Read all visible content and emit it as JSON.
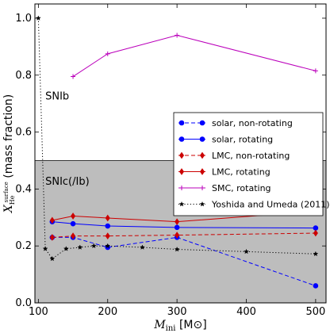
{
  "chart_data": {
    "type": "line",
    "xlabel": "M_ini [M⊙]",
    "xlabel_main": "M",
    "xlabel_sub": "ini",
    "xlabel_unit": "[M⊙]",
    "ylabel": "X_He^surface (mass fraction)",
    "ylabel_main": "X",
    "ylabel_sub": "He",
    "ylabel_sup": "surface",
    "ylabel_text": "(mass fraction)",
    "xlim": [
      95,
      515
    ],
    "ylim": [
      0.0,
      1.05
    ],
    "x_ticks": [
      100,
      200,
      300,
      400,
      500
    ],
    "y_ticks": [
      0.0,
      0.2,
      0.4,
      0.6,
      0.8,
      1.0
    ],
    "x_tick_labels": [
      "100",
      "200",
      "300",
      "400",
      "500"
    ],
    "y_tick_labels": [
      "0.0",
      "0.2",
      "0.4",
      "0.6",
      "0.8",
      "1.0"
    ],
    "regions": [
      {
        "label": "SNIb",
        "y_range": [
          0.5,
          1.05
        ],
        "fill": "#ffffff",
        "label_at": [
          110,
          0.715
        ]
      },
      {
        "label": "SNIc(/Ib)",
        "y_range": [
          0.0,
          0.5
        ],
        "fill": "#bdbdbd",
        "label_at": [
          110,
          0.415
        ]
      }
    ],
    "legend_position": "center-right",
    "series": [
      {
        "name": "solar, non-rotating",
        "color": "#0000ff",
        "line": "dashed",
        "marker": "circle",
        "x": [
          120,
          150,
          200,
          300,
          500
        ],
        "y": [
          0.23,
          0.23,
          0.195,
          0.23,
          0.06
        ]
      },
      {
        "name": "solar, rotating",
        "color": "#0000ff",
        "line": "solid",
        "marker": "circle",
        "x": [
          120,
          150,
          200,
          300,
          500
        ],
        "y": [
          0.285,
          0.278,
          0.27,
          0.265,
          0.263
        ]
      },
      {
        "name": "LMC, non-rotating",
        "color": "#cc0000",
        "line": "dashed",
        "marker": "diamond",
        "x": [
          120,
          150,
          200,
          300,
          500
        ],
        "y": [
          0.23,
          0.235,
          0.235,
          0.238,
          0.245
        ]
      },
      {
        "name": "LMC, rotating",
        "color": "#cc0000",
        "line": "solid",
        "marker": "diamond",
        "x": [
          120,
          150,
          200,
          300,
          500
        ],
        "y": [
          0.29,
          0.305,
          0.298,
          0.285,
          0.322
        ]
      },
      {
        "name": "SMC, rotating",
        "color": "#bb00bb",
        "line": "solid",
        "marker": "plus",
        "x": [
          150,
          200,
          300,
          500
        ],
        "y": [
          0.795,
          0.875,
          0.94,
          0.815
        ]
      },
      {
        "name": "Yoshida and Umeda (2011)",
        "color": "#000000",
        "line": "dotted",
        "marker": "star",
        "x": [
          100,
          110,
          120,
          140,
          160,
          180,
          200,
          250,
          300,
          400,
          500
        ],
        "y": [
          1.0,
          0.19,
          0.155,
          0.19,
          0.195,
          0.2,
          0.2,
          0.195,
          0.188,
          0.18,
          0.172
        ]
      }
    ]
  }
}
